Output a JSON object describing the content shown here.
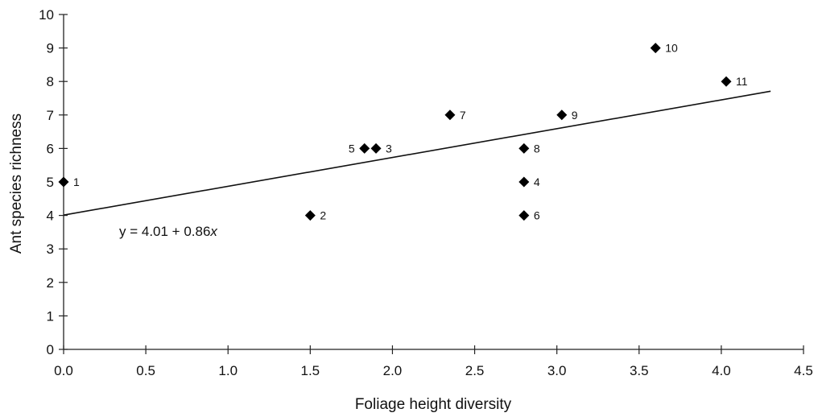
{
  "chart_data": {
    "type": "scatter",
    "title": "",
    "xlabel": "Foliage height diversity",
    "ylabel": "Ant species richness",
    "xlim": [
      0,
      4.5
    ],
    "ylim": [
      0,
      10
    ],
    "xticks": [
      "0.0",
      "0.5",
      "1.0",
      "1.5",
      "2.0",
      "2.5",
      "3.0",
      "3.5",
      "4.0",
      "4.5"
    ],
    "yticks": [
      "0",
      "1",
      "2",
      "3",
      "4",
      "5",
      "6",
      "7",
      "8",
      "9",
      "10"
    ],
    "grid": false,
    "legend": "none",
    "marker": "diamond",
    "points": [
      {
        "label": "1",
        "x": 0.0,
        "y": 5
      },
      {
        "label": "2",
        "x": 1.5,
        "y": 4
      },
      {
        "label": "3",
        "x": 1.9,
        "y": 6
      },
      {
        "label": "4",
        "x": 2.8,
        "y": 5
      },
      {
        "label": "5",
        "x": 1.83,
        "y": 6
      },
      {
        "label": "6",
        "x": 2.8,
        "y": 4
      },
      {
        "label": "7",
        "x": 2.35,
        "y": 7
      },
      {
        "label": "8",
        "x": 2.8,
        "y": 6
      },
      {
        "label": "9",
        "x": 3.03,
        "y": 7
      },
      {
        "label": "10",
        "x": 3.6,
        "y": 9
      },
      {
        "label": "11",
        "x": 4.03,
        "y": 8
      }
    ],
    "regression": {
      "intercept": 4.01,
      "slope": 0.86,
      "x_range": [
        0,
        4.3
      ],
      "equation_prefix": "y = 4.01 + 0.86",
      "equation_var": "x"
    }
  }
}
